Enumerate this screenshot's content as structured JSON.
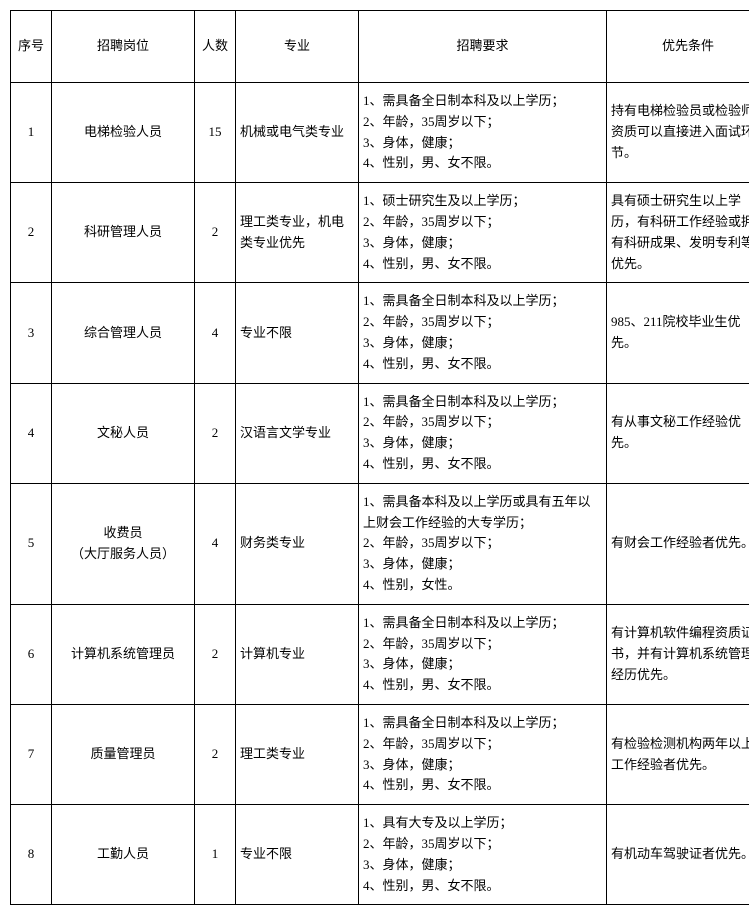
{
  "table": {
    "headers": {
      "num": "序号",
      "position": "招聘岗位",
      "count": "人数",
      "major": "专业",
      "requirements": "招聘要求",
      "preference": "优先条件"
    },
    "rows": [
      {
        "num": "1",
        "position": "电梯检验人员",
        "count": "15",
        "major": "机械或电气类专业",
        "requirements": "1、需具备全日制本科及以上学历；\n2、年龄，35周岁以下；\n3、身体，健康；\n4、性别，男、女不限。",
        "preference": "持有电梯检验员或检验师资质可以直接进入面试环节。"
      },
      {
        "num": "2",
        "position": "科研管理人员",
        "count": "2",
        "major": "理工类专业，机电类专业优先",
        "requirements": "1、硕士研究生及以上学历；\n2、年龄，35周岁以下；\n3、身体，健康；\n4、性别，男、女不限。",
        "preference": "具有硕士研究生以上学历，有科研工作经验或拥有科研成果、发明专利等优先。"
      },
      {
        "num": "3",
        "position": "综合管理人员",
        "count": "4",
        "major": "专业不限",
        "requirements": "1、需具备全日制本科及以上学历；\n2、年龄，35周岁以下；\n3、身体，健康；\n4、性别，男、女不限。",
        "preference": "985、211院校毕业生优先。"
      },
      {
        "num": "4",
        "position": "文秘人员",
        "count": "2",
        "major": "汉语言文学专业",
        "requirements": "1、需具备全日制本科及以上学历；\n2、年龄，35周岁以下；\n3、身体，健康；\n4、性别，男、女不限。",
        "preference": "有从事文秘工作经验优先。"
      },
      {
        "num": "5",
        "position": "收费员\n（大厅服务人员）",
        "count": "4",
        "major": "财务类专业",
        "requirements": "1、需具备本科及以上学历或具有五年以上财会工作经验的大专学历；\n2、年龄，35周岁以下；\n3、身体，健康；\n4、性别，女性。",
        "preference": "有财会工作经验者优先。"
      },
      {
        "num": "6",
        "position": "计算机系统管理员",
        "count": "2",
        "major": "计算机专业",
        "requirements": "1、需具备全日制本科及以上学历；\n2、年龄，35周岁以下；\n3、身体，健康；\n4、性别，男、女不限。",
        "preference": "有计算机软件编程资质证书，并有计算机系统管理经历优先。"
      },
      {
        "num": "7",
        "position": "质量管理员",
        "count": "2",
        "major": "理工类专业",
        "requirements": "1、需具备全日制本科及以上学历；\n2、年龄，35周岁以下；\n3、身体，健康；\n4、性别，男、女不限。",
        "preference": "有检验检测机构两年以上工作经验者优先。"
      },
      {
        "num": "8",
        "position": "工勤人员",
        "count": "1",
        "major": "专业不限",
        "requirements": "1、具有大专及以上学历；\n2、年龄，35周岁以下；\n3、身体，健康；\n4、性别，男、女不限。",
        "preference": "有机动车驾驶证者优先。"
      }
    ]
  }
}
